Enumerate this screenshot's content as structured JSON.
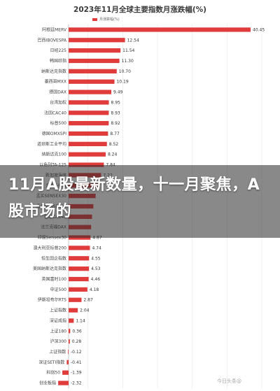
{
  "chart_data": {
    "type": "bar",
    "orientation": "horizontal",
    "title": "2023年11月全球主要指数月涨跌幅(%)",
    "legend": [
      "月涨跌幅(%)"
    ],
    "legend_position": "top-left",
    "bar_color": "#e03c3c",
    "grid": true,
    "categories": [
      "阿根廷MERV",
      "巴西IBOVESPA",
      "日经225",
      "韩国综指",
      "纳斯达克指数",
      "墨西哥MXX",
      "德国DAX",
      "台湾加权",
      "法国CAC40",
      "标普500",
      "德国OMXSPI",
      "道琼斯工业平均",
      "纳斯达克100",
      "以色列TA-125",
      "新加坡海峡",
      "多伦多综合",
      "孟买SENSEX30",
      "孟买SENSEX30",
      "巴黎CAC40",
      "法兰克福DAX",
      "印度Sensex30",
      "澳大利亚标普200",
      "恒生国企指数",
      "美国纳斯达克指数",
      "英国富时100",
      "中证500",
      "伊斯坦布尔RTS",
      "上证指数",
      "深证成指",
      "上证180",
      "沪深300",
      "上证指数",
      "深证SETI指数",
      "科创50",
      "创业板指"
    ],
    "values": [
      40.45,
      12.54,
      11.54,
      11.3,
      10.7,
      10.19,
      9.49,
      8.95,
      8.93,
      8.92,
      8.77,
      8.52,
      8.24,
      7.84,
      7.22,
      6.5,
      6.0,
      5.5,
      5.2,
      5.0,
      4.87,
      4.74,
      4.55,
      4.53,
      4.46,
      4.18,
      2.87,
      2.04,
      1.14,
      0.36,
      0.28,
      -0.12,
      -0.41,
      -1.39,
      -2.32
    ],
    "value_labels": [
      "40.45",
      "12.54",
      "11.54",
      "11.30",
      "10.70",
      "10.19",
      "9.49",
      "8.95",
      "8.93",
      "8.92",
      "8.77",
      "8.52",
      "8.24",
      "7.84",
      "7.22",
      "",
      "",
      "",
      "",
      "",
      "4.87",
      "4.74",
      "4.55",
      "4.53",
      "4.46",
      "4.18",
      "2.87",
      "2.04",
      "1.14",
      "0.36",
      "0.28",
      "-0.12",
      "-0.41",
      "-1.39",
      "-2.32"
    ],
    "xlim": [
      -3,
      42
    ]
  },
  "overlay": {
    "headline": "11月A股最新数量，十一月聚焦，A股市场的"
  },
  "watermark": "今日头条@"
}
